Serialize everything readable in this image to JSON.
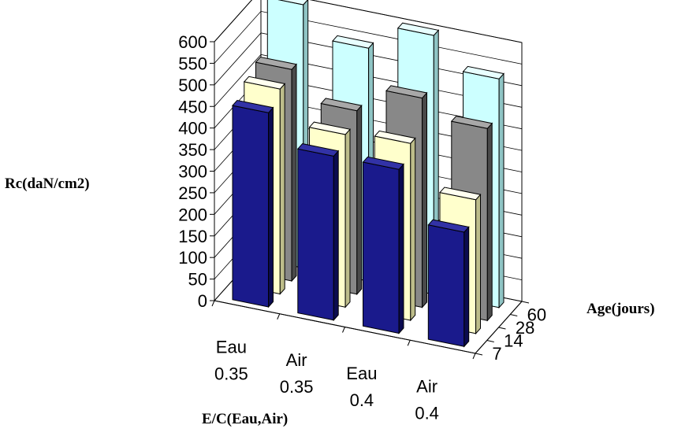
{
  "chart_data": {
    "type": "bar",
    "title": "",
    "xlabel": "E/C(Eau,Air)",
    "ylabel": "Rc(daN/cm2)",
    "zlabel": "Age(jours)",
    "categories": [
      [
        "Eau",
        "0.35"
      ],
      [
        "Air",
        "0.35"
      ],
      [
        "Eau",
        "0.4"
      ],
      [
        "Air",
        "0.4"
      ]
    ],
    "depth_categories": [
      "7",
      "14",
      "28",
      "60"
    ],
    "ylim": [
      0,
      600
    ],
    "yticks": [
      0,
      50,
      100,
      150,
      200,
      250,
      300,
      350,
      400,
      450,
      500,
      550,
      600
    ],
    "grid": true,
    "legend": "none",
    "series": [
      {
        "values": [
          450,
          380,
          380,
          265
        ]
      },
      {
        "values": [
          475,
          400,
          410,
          310
        ]
      },
      {
        "values": [
          490,
          425,
          485,
          445
        ]
      },
      {
        "values": [
          610,
          540,
          600,
          530
        ]
      }
    ],
    "colors": {
      "series_front": [
        "#1a1a8c",
        "#ffffcc",
        "#888888",
        "#ccffff"
      ],
      "series_side": [
        "#0b0b50",
        "#bdbd8a",
        "#4a4a4a",
        "#8fc4c4"
      ],
      "series_top": [
        "#3232a6",
        "#fffff0",
        "#a8a8a8",
        "#e8ffff"
      ]
    }
  }
}
